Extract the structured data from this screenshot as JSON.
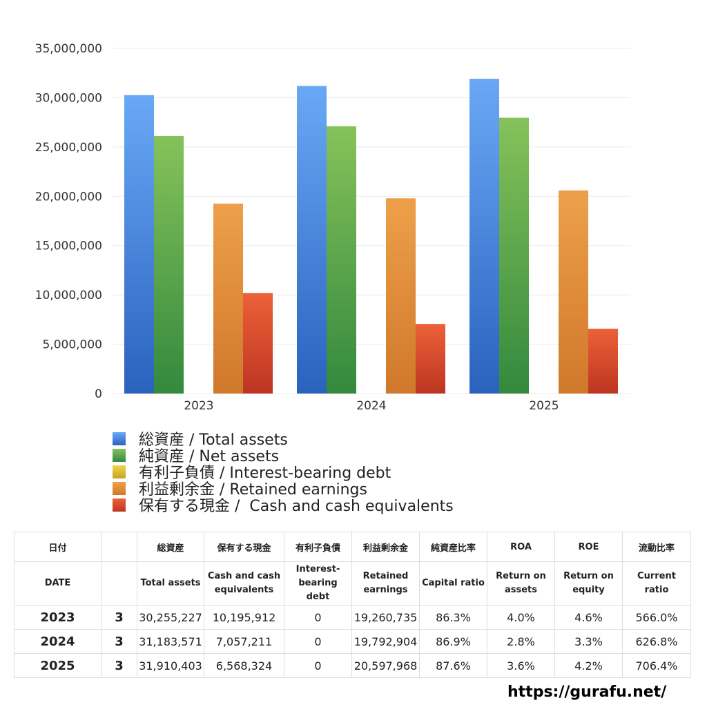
{
  "chart_data": {
    "type": "bar",
    "categories": [
      "2023",
      "2024",
      "2025"
    ],
    "ylim": [
      0,
      35000000
    ],
    "yticks": [
      0,
      5000000,
      10000000,
      15000000,
      20000000,
      25000000,
      30000000,
      35000000
    ],
    "ytick_labels": [
      "0",
      "5,000,000",
      "10,000,000",
      "15,000,000",
      "20,000,000",
      "25,000,000",
      "30,000,000",
      "35,000,000"
    ],
    "grid": true,
    "legend_position": "bottom",
    "series": [
      {
        "name": "総資産 / Total assets",
        "values": [
          30255227,
          31183571,
          31910403
        ],
        "color_top": "#69a8f6",
        "color_bottom": "#2a62be"
      },
      {
        "name": "純資産 / Net assets",
        "values": [
          26115000,
          27100000,
          27960000
        ],
        "color_top": "#86c25a",
        "color_bottom": "#33893e"
      },
      {
        "name": "有利子負債 / Interest-bearing debt",
        "values": [
          0,
          0,
          0
        ],
        "color_top": "#f0d44c",
        "color_bottom": "#c7a323"
      },
      {
        "name": "利益剰余金 / Retained earnings",
        "values": [
          19260735,
          19792904,
          20597968
        ],
        "color_top": "#eda04a",
        "color_bottom": "#d0782b"
      },
      {
        "name": "保有する現金 /  Cash and cash equivalents",
        "values": [
          10195912,
          7057211,
          6568324
        ],
        "color_top": "#ec6138",
        "color_bottom": "#bd3522"
      }
    ]
  },
  "table": {
    "header_jp": [
      "日付",
      "",
      "総資産",
      "保有する現金",
      "有利子負債",
      "利益剰余金",
      "純資産比率",
      "ROA",
      "ROE",
      "流動比率"
    ],
    "header_en": [
      [
        "DATE"
      ],
      [
        ""
      ],
      [
        "Total assets"
      ],
      [
        "Cash and cash",
        "equivalents"
      ],
      [
        "Interest-",
        "bearing",
        "debt"
      ],
      [
        "Retained",
        "earnings"
      ],
      [
        "Capital ratio"
      ],
      [
        "Return on",
        "assets"
      ],
      [
        "Return on",
        "equity"
      ],
      [
        "Current",
        "ratio"
      ]
    ],
    "rows": [
      [
        "2023",
        "3",
        "30,255,227",
        "10,195,912",
        "0",
        "19,260,735",
        "86.3%",
        "4.0%",
        "4.6%",
        "566.0%"
      ],
      [
        "2024",
        "3",
        "31,183,571",
        "7,057,211",
        "0",
        "19,792,904",
        "86.9%",
        "2.8%",
        "3.3%",
        "626.8%"
      ],
      [
        "2025",
        "3",
        "31,910,403",
        "6,568,324",
        "0",
        "20,597,968",
        "87.6%",
        "3.6%",
        "4.2%",
        "706.4%"
      ]
    ]
  },
  "footer": {
    "url": "https://gurafu.net/"
  }
}
